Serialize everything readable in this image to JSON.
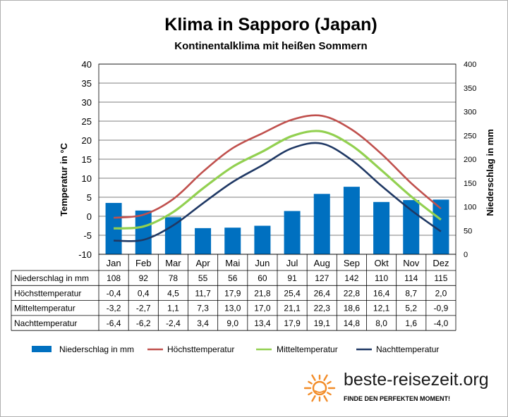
{
  "chart_data": {
    "type": "bar+line",
    "title": "Klima in Sapporo (Japan)",
    "subtitle": "Kontinentalklima mit heißen Sommern",
    "categories": [
      "Jan",
      "Feb",
      "Mar",
      "Apr",
      "Mai",
      "Jun",
      "Jul",
      "Aug",
      "Sep",
      "Okt",
      "Nov",
      "Dez"
    ],
    "ylabel_left": "Temperatur in °C",
    "ylabel_right": "Niederschlag in mm",
    "ylim_left": [
      -10,
      40
    ],
    "ylim_right": [
      0,
      400
    ],
    "yticks_left": [
      "-10",
      "-5",
      "0",
      "5",
      "10",
      "15",
      "20",
      "25",
      "30",
      "35",
      "40"
    ],
    "yticks_right": [
      "0",
      "50",
      "100",
      "150",
      "200",
      "250",
      "300",
      "350",
      "400"
    ],
    "grid": true,
    "legend_position": "bottom",
    "series": [
      {
        "name": "Niederschlag in mm",
        "type": "bar",
        "axis": "right",
        "color": "#0070c0",
        "values": [
          108,
          92,
          78,
          55,
          56,
          60,
          91,
          127,
          142,
          110,
          114,
          115
        ],
        "labels": [
          "108",
          "92",
          "78",
          "55",
          "56",
          "60",
          "91",
          "127",
          "142",
          "110",
          "114",
          "115"
        ]
      },
      {
        "name": "Höchsttemperatur",
        "type": "line",
        "axis": "left",
        "color": "#c0504d",
        "values": [
          -0.4,
          0.4,
          4.5,
          11.7,
          17.9,
          21.8,
          25.4,
          26.4,
          22.8,
          16.4,
          8.7,
          2.0
        ],
        "labels": [
          "-0,4",
          "0,4",
          "4,5",
          "11,7",
          "17,9",
          "21,8",
          "25,4",
          "26,4",
          "22,8",
          "16,4",
          "8,7",
          "2,0"
        ]
      },
      {
        "name": "Mitteltemperatur",
        "type": "line",
        "axis": "left",
        "color": "#92d050",
        "values": [
          -3.2,
          -2.7,
          1.1,
          7.3,
          13.0,
          17.0,
          21.1,
          22.3,
          18.6,
          12.1,
          5.2,
          -0.9
        ],
        "labels": [
          "-3,2",
          "-2,7",
          "1,1",
          "7,3",
          "13,0",
          "17,0",
          "21,1",
          "22,3",
          "18,6",
          "12,1",
          "5,2",
          "-0,9"
        ]
      },
      {
        "name": "Nachttemperatur",
        "type": "line",
        "axis": "left",
        "color": "#1f3864",
        "values": [
          -6.4,
          -6.2,
          -2.4,
          3.4,
          9.0,
          13.4,
          17.9,
          19.1,
          14.8,
          8.0,
          1.6,
          -4.0
        ],
        "labels": [
          "-6,4",
          "-6,2",
          "-2,4",
          "3,4",
          "9,0",
          "13,4",
          "17,9",
          "19,1",
          "14,8",
          "8,0",
          "1,6",
          "-4,0"
        ]
      }
    ]
  },
  "logo": {
    "text": "beste-reisezeit.org",
    "slogan": "FINDE DEN PERFEKTEN MOMENT!",
    "sun_color": "#f28c28"
  }
}
